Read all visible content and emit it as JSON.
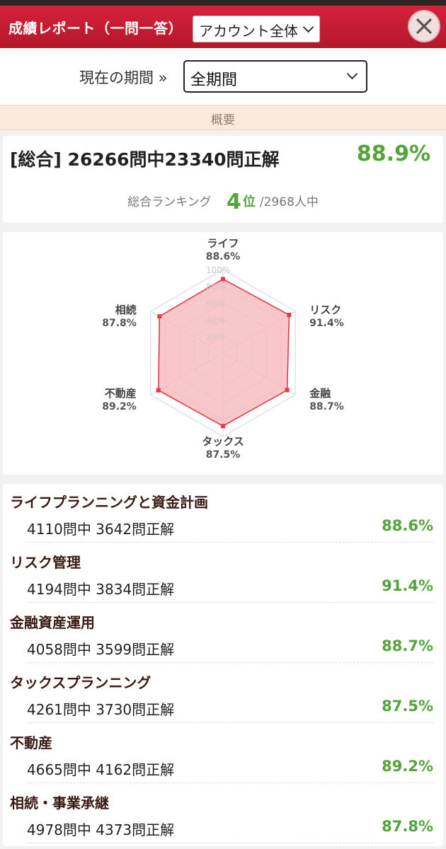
{
  "header": {
    "title": "成績レポート（一問一答）",
    "scope_value": "アカウント全体"
  },
  "period": {
    "label": "現在の期間 »",
    "value": "全期間"
  },
  "summary_label": "概要",
  "total": {
    "label": "[総合] 26266問中23340問正解",
    "percent": "88.9%",
    "ranking_label": "総合ランキング",
    "rank": "4",
    "rank_unit": "位",
    "rank_of": "/2968人中"
  },
  "radar": {
    "ticks": [
      "20%",
      "40%",
      "60%",
      "80%",
      "100%"
    ],
    "axes": [
      {
        "name": "ライフ",
        "pct": "88.6%",
        "value": 88.6
      },
      {
        "name": "リスク",
        "pct": "91.4%",
        "value": 91.4
      },
      {
        "name": "金融",
        "pct": "88.7%",
        "value": 88.7
      },
      {
        "name": "タックス",
        "pct": "87.5%",
        "value": 87.5
      },
      {
        "name": "不動産",
        "pct": "89.2%",
        "value": 89.2
      },
      {
        "name": "相続",
        "pct": "87.8%",
        "value": 87.8
      }
    ],
    "fill_color": "#f6b9bb",
    "line_color": "#e23a46"
  },
  "categories": [
    {
      "name": "ライフプランニングと資金計画",
      "detail": "4110問中 3642問正解",
      "pct": "88.6%"
    },
    {
      "name": "リスク管理",
      "detail": "4194問中 3834問正解",
      "pct": "91.4%"
    },
    {
      "name": "金融資産運用",
      "detail": "4058問中 3599問正解",
      "pct": "88.7%"
    },
    {
      "name": "タックスプランニング",
      "detail": "4261問中 3730問正解",
      "pct": "87.5%"
    },
    {
      "name": "不動産",
      "detail": "4665問中 4162問正解",
      "pct": "89.2%"
    },
    {
      "name": "相続・事業承継",
      "detail": "4978問中 4373問正解",
      "pct": "87.8%"
    }
  ]
}
